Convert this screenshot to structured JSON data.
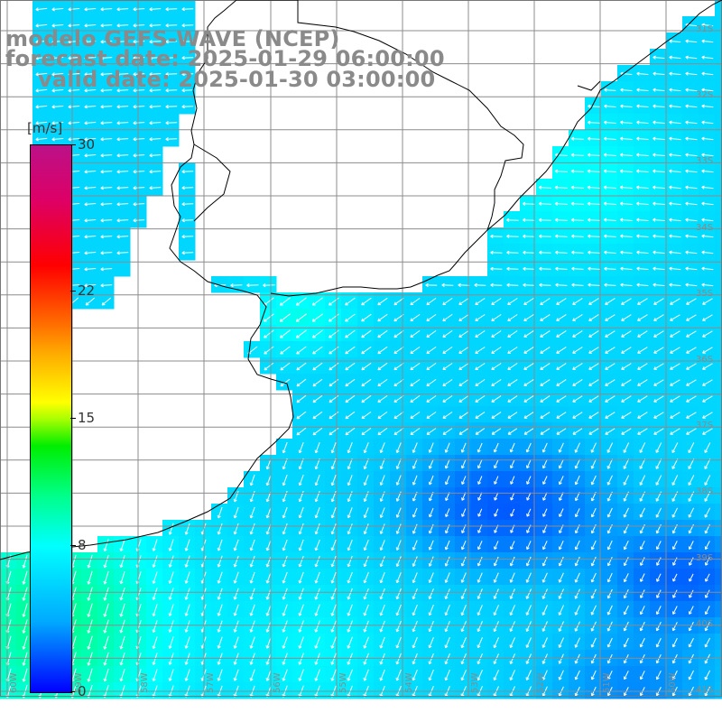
{
  "title": {
    "line1": "modelo GEFS-WAVE (NCEP)",
    "line2": "forecast date: 2025-01-29 06:00:00",
    "line3": "valid date: 2025-01-30 03:00:00"
  },
  "colorbar": {
    "unit": "[m/s]",
    "min": 0,
    "max": 30,
    "ticks": [
      "30",
      "22",
      "15",
      "8",
      "0"
    ],
    "tick_values": [
      30,
      22,
      15,
      8,
      0
    ],
    "colors": [
      "#0000ff",
      "#00aaff",
      "#00ffff",
      "#00ee00",
      "#ffff00",
      "#ff6600",
      "#ff0000",
      "#bb1188"
    ]
  },
  "map": {
    "lat_labels": [
      "31S",
      "32S",
      "33S",
      "34S",
      "35S",
      "36S",
      "37S",
      "38S",
      "39S",
      "40S",
      "41S"
    ],
    "lon_labels": [
      "60W",
      "59W",
      "58W",
      "57W",
      "56W",
      "55W",
      "54W",
      "53W",
      "52W",
      "51W",
      "50W"
    ],
    "colors": {
      "land": "#ffffff",
      "grid": "#8c8c8c",
      "coast": "#000000",
      "arrow": "#ffffff"
    }
  }
}
